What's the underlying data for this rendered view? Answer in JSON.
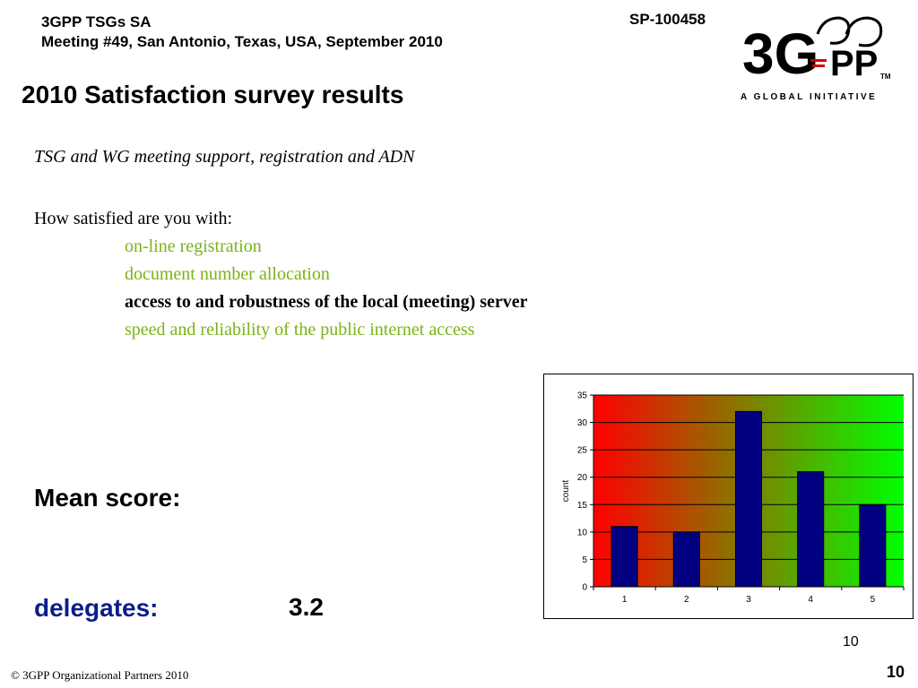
{
  "header": {
    "line1": "3GPP TSGs SA",
    "line2": "Meeting #49, San Antonio, Texas, USA, September 2010",
    "doc_id": "SP-100458"
  },
  "logo": {
    "mark": "3G",
    "pp": "PP",
    "tm": "TM",
    "tagline": "A GLOBAL INITIATIVE"
  },
  "slide": {
    "title": "2010 Satisfaction survey results",
    "subtitle": "TSG and WG meeting support, registration and ADN",
    "question": "How satisfied are you with:",
    "items": [
      {
        "text": "on-line registration",
        "color": "#7ab317",
        "bold": false
      },
      {
        "text": "document number allocation",
        "color": "#7ab317",
        "bold": false
      },
      {
        "text": "access to and robustness of the local (meeting) server",
        "color": "#000000",
        "bold": true
      },
      {
        "text": "speed and reliability of the public internet access",
        "color": "#7ab317",
        "bold": false
      }
    ],
    "mean_label": "Mean score:",
    "delegates_label": "delegates:",
    "delegates_score": "3.2",
    "small_count": "10",
    "copyright": "© 3GPP Organizational Partners 2010",
    "page_number": "10"
  },
  "colors": {
    "delegates": "#0b1d8c",
    "bar": "#000080",
    "gradient_start": "#ff0000",
    "gradient_end": "#00ff00"
  },
  "chart_data": {
    "type": "bar",
    "categories": [
      "1",
      "2",
      "3",
      "4",
      "5"
    ],
    "values": [
      11,
      10,
      32,
      21,
      15
    ],
    "ylabel": "count",
    "xlabel": "",
    "ylim": [
      0,
      35
    ],
    "yticks": [
      0,
      5,
      10,
      15,
      20,
      25,
      30,
      35
    ],
    "grid": true,
    "background": "red-to-green gradient"
  }
}
